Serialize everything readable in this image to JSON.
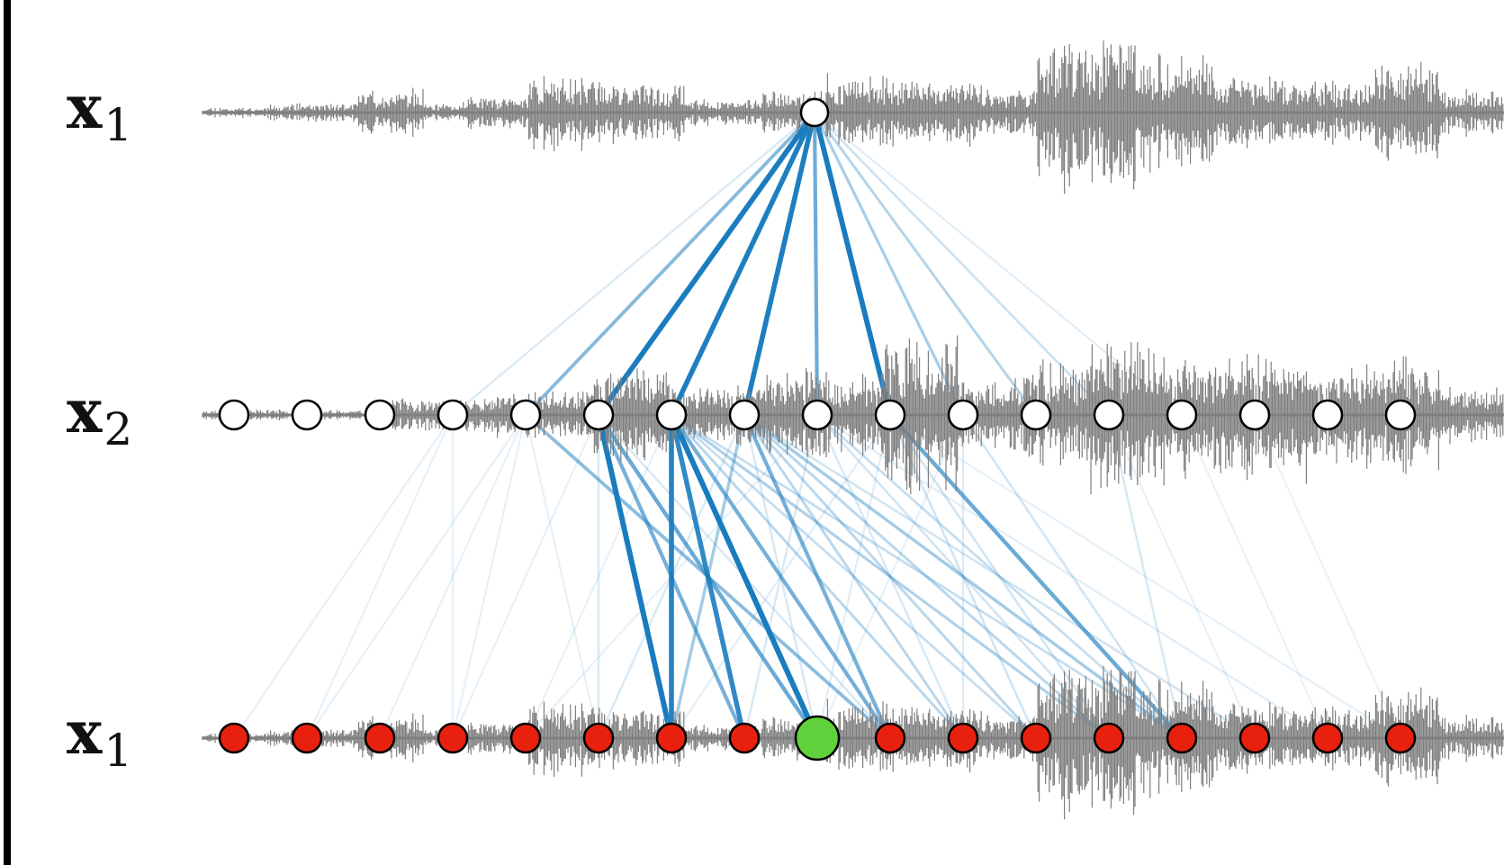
{
  "labels": {
    "top": {
      "base": "x",
      "sub": "1"
    },
    "middle": {
      "base": "x",
      "sub": "2"
    },
    "bottom": {
      "base": "x",
      "sub": "1"
    }
  },
  "colors": {
    "waveform": "#7f7f7f",
    "edge": "#1a7cbf",
    "node_layer2": "#ffffff",
    "node_output": "#e8200e",
    "node_target": "#5fd13a",
    "frame": "#000000"
  },
  "layers": {
    "top_node_count": 1,
    "middle_node_count": 17,
    "bottom_node_count": 17,
    "highlighted_bottom_node": 8
  },
  "edges": {
    "top_to_middle_weights": [
      0.0,
      0.0,
      0.0,
      0.08,
      0.45,
      0.95,
      0.9,
      0.9,
      0.55,
      0.95,
      0.3,
      0.25,
      0.15,
      0.05,
      0.0,
      0.0,
      0.0
    ],
    "middle_to_bottom": [
      {
        "from": 3,
        "to": 0,
        "w": 0.06
      },
      {
        "from": 3,
        "to": 1,
        "w": 0.06
      },
      {
        "from": 3,
        "to": 3,
        "w": 0.05
      },
      {
        "from": 4,
        "to": 1,
        "w": 0.06
      },
      {
        "from": 4,
        "to": 2,
        "w": 0.06
      },
      {
        "from": 4,
        "to": 3,
        "w": 0.06
      },
      {
        "from": 4,
        "to": 5,
        "w": 0.06
      },
      {
        "from": 4,
        "to": 9,
        "w": 0.45
      },
      {
        "from": 5,
        "to": 3,
        "w": 0.06
      },
      {
        "from": 5,
        "to": 5,
        "w": 0.12
      },
      {
        "from": 5,
        "to": 6,
        "w": 1.0
      },
      {
        "from": 5,
        "to": 7,
        "w": 0.55
      },
      {
        "from": 5,
        "to": 8,
        "w": 0.6
      },
      {
        "from": 5,
        "to": 9,
        "w": 0.12
      },
      {
        "from": 6,
        "to": 4,
        "w": 0.06
      },
      {
        "from": 6,
        "to": 6,
        "w": 0.9
      },
      {
        "from": 6,
        "to": 7,
        "w": 0.85
      },
      {
        "from": 6,
        "to": 8,
        "w": 1.0
      },
      {
        "from": 6,
        "to": 9,
        "w": 0.55
      },
      {
        "from": 6,
        "to": 10,
        "w": 0.25
      },
      {
        "from": 6,
        "to": 11,
        "w": 0.2
      },
      {
        "from": 6,
        "to": 12,
        "w": 0.3
      },
      {
        "from": 6,
        "to": 13,
        "w": 0.2
      },
      {
        "from": 7,
        "to": 5,
        "w": 0.12
      },
      {
        "from": 7,
        "to": 6,
        "w": 0.35
      },
      {
        "from": 7,
        "to": 8,
        "w": 0.12
      },
      {
        "from": 7,
        "to": 9,
        "w": 0.55
      },
      {
        "from": 7,
        "to": 10,
        "w": 0.25
      },
      {
        "from": 7,
        "to": 11,
        "w": 0.25
      },
      {
        "from": 7,
        "to": 12,
        "w": 0.25
      },
      {
        "from": 7,
        "to": 13,
        "w": 0.35
      },
      {
        "from": 7,
        "to": 14,
        "w": 0.15
      },
      {
        "from": 8,
        "to": 4,
        "w": 0.06
      },
      {
        "from": 8,
        "to": 7,
        "w": 0.12
      },
      {
        "from": 8,
        "to": 10,
        "w": 0.12
      },
      {
        "from": 8,
        "to": 12,
        "w": 0.15
      },
      {
        "from": 8,
        "to": 13,
        "w": 0.2
      },
      {
        "from": 8,
        "to": 15,
        "w": 0.08
      },
      {
        "from": 9,
        "to": 6,
        "w": 0.08
      },
      {
        "from": 9,
        "to": 8,
        "w": 0.08
      },
      {
        "from": 9,
        "to": 11,
        "w": 0.15
      },
      {
        "from": 9,
        "to": 12,
        "w": 0.15
      },
      {
        "from": 9,
        "to": 13,
        "w": 0.6
      },
      {
        "from": 9,
        "to": 16,
        "w": 0.06
      },
      {
        "from": 10,
        "to": 8,
        "w": 0.06
      },
      {
        "from": 10,
        "to": 10,
        "w": 0.1
      },
      {
        "from": 10,
        "to": 13,
        "w": 0.15
      },
      {
        "from": 12,
        "to": 13,
        "w": 0.12
      },
      {
        "from": 12,
        "to": 14,
        "w": 0.06
      },
      {
        "from": 13,
        "to": 15,
        "w": 0.05
      },
      {
        "from": 14,
        "to": 16,
        "w": 0.04
      }
    ]
  },
  "waveforms": {
    "top": {
      "seed": 11,
      "segments": [
        [
          0.0,
          0.05,
          0.08
        ],
        [
          0.05,
          0.12,
          0.14
        ],
        [
          0.12,
          0.17,
          0.35
        ],
        [
          0.17,
          0.2,
          0.12
        ],
        [
          0.2,
          0.25,
          0.25
        ],
        [
          0.25,
          0.3,
          0.6
        ],
        [
          0.3,
          0.37,
          0.45
        ],
        [
          0.37,
          0.43,
          0.2
        ],
        [
          0.43,
          0.48,
          0.35
        ],
        [
          0.48,
          0.54,
          0.55
        ],
        [
          0.54,
          0.6,
          0.5
        ],
        [
          0.6,
          0.64,
          0.35
        ],
        [
          0.64,
          0.66,
          1.0
        ],
        [
          0.66,
          0.72,
          1.15
        ],
        [
          0.72,
          0.78,
          0.85
        ],
        [
          0.78,
          0.83,
          0.55
        ],
        [
          0.83,
          0.9,
          0.45
        ],
        [
          0.9,
          0.95,
          0.75
        ],
        [
          0.95,
          1.0,
          0.35
        ]
      ]
    },
    "middle": {
      "seed": 23,
      "segments": [
        [
          0.0,
          0.14,
          0.08
        ],
        [
          0.14,
          0.22,
          0.25
        ],
        [
          0.22,
          0.3,
          0.35
        ],
        [
          0.3,
          0.36,
          0.75
        ],
        [
          0.36,
          0.43,
          0.45
        ],
        [
          0.43,
          0.48,
          0.75
        ],
        [
          0.48,
          0.52,
          0.6
        ],
        [
          0.52,
          0.58,
          1.2
        ],
        [
          0.58,
          0.63,
          0.55
        ],
        [
          0.63,
          0.68,
          0.8
        ],
        [
          0.68,
          0.74,
          1.15
        ],
        [
          0.74,
          0.8,
          0.9
        ],
        [
          0.8,
          0.85,
          1.0
        ],
        [
          0.85,
          0.9,
          0.8
        ],
        [
          0.9,
          0.95,
          0.9
        ],
        [
          0.95,
          1.0,
          0.45
        ]
      ]
    }
  }
}
